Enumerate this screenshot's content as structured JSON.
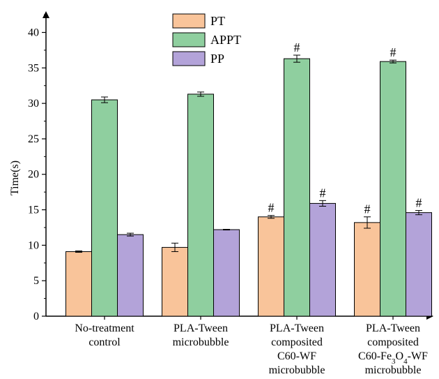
{
  "chart_data": {
    "type": "bar",
    "ylabel": "Time(s)",
    "xlabel": "",
    "ylim": [
      0,
      43
    ],
    "yticks": [
      0,
      5,
      10,
      15,
      20,
      25,
      30,
      35,
      40
    ],
    "grid": false,
    "legend_position": "top-center",
    "categories": [
      [
        "No-treatment",
        "control"
      ],
      [
        "PLA-Tween",
        "microbubble"
      ],
      [
        "PLA-Tween",
        "composited",
        "C60-WF",
        "microbubble"
      ],
      [
        "PLA-Tween",
        "composited",
        "C60-Fe3O4-WF",
        "microbubble"
      ]
    ],
    "series": [
      {
        "name": "PT",
        "color": "#F9C49A",
        "values": [
          9.1,
          9.7,
          14.0,
          13.2
        ],
        "errors": [
          0.1,
          0.6,
          0.2,
          0.8
        ],
        "marks": [
          "",
          "",
          "#",
          "#"
        ]
      },
      {
        "name": "APPT",
        "color": "#8FCF9F",
        "values": [
          30.5,
          31.3,
          36.3,
          35.9
        ],
        "errors": [
          0.4,
          0.3,
          0.5,
          0.2
        ],
        "marks": [
          "",
          "",
          "#",
          "#"
        ]
      },
      {
        "name": "PP",
        "color": "#B3A3D9",
        "values": [
          11.5,
          12.2,
          15.9,
          14.6
        ],
        "errors": [
          0.2,
          0.05,
          0.4,
          0.3
        ],
        "marks": [
          "",
          "",
          "#",
          "#"
        ]
      }
    ]
  }
}
